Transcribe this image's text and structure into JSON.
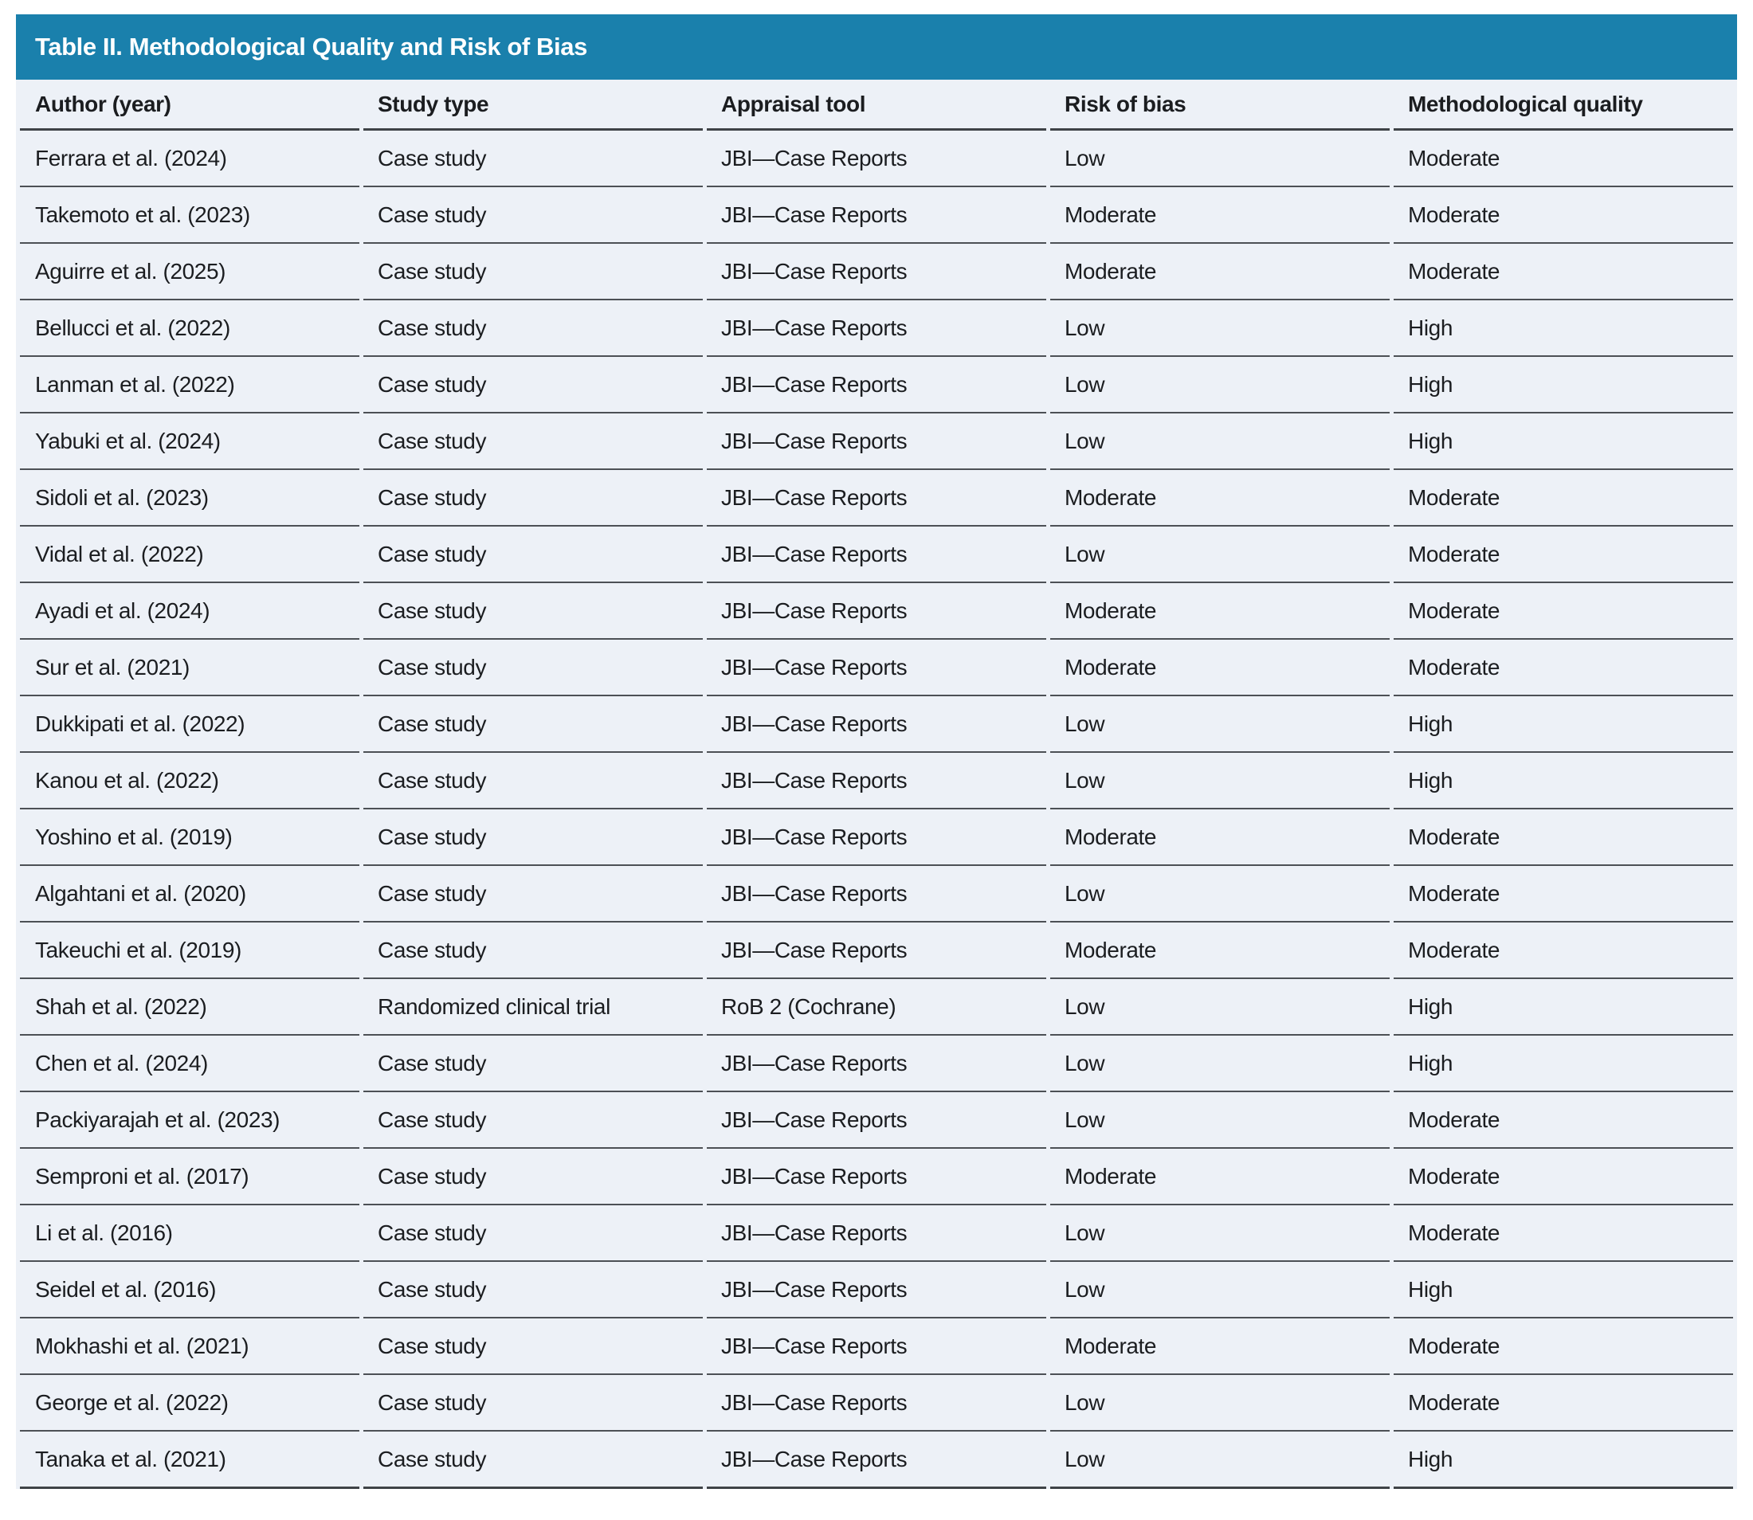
{
  "title": "Table II. Methodological Quality and Risk of Bias",
  "colors": {
    "header_bg": "#1a80ac",
    "title_text": "#ffffff",
    "row_bg": "#edf1f7",
    "text": "#1b1d20",
    "line": "#4c5055",
    "strong_line": "#3f4347"
  },
  "table": {
    "columns": [
      "Author (year)",
      "Study type",
      "Appraisal tool",
      "Risk of bias",
      "Methodological quality"
    ],
    "rows": [
      [
        "Ferrara et al. (2024)",
        "Case study",
        "JBI—Case Reports",
        "Low",
        "Moderate"
      ],
      [
        "Takemoto et al. (2023)",
        "Case study",
        "JBI—Case Reports",
        "Moderate",
        "Moderate"
      ],
      [
        "Aguirre et al. (2025)",
        "Case study",
        "JBI—Case Reports",
        "Moderate",
        "Moderate"
      ],
      [
        "Bellucci et al. (2022)",
        "Case study",
        "JBI—Case Reports",
        "Low",
        "High"
      ],
      [
        "Lanman et al. (2022)",
        "Case study",
        "JBI—Case Reports",
        "Low",
        "High"
      ],
      [
        "Yabuki et al. (2024)",
        "Case study",
        "JBI—Case Reports",
        "Low",
        "High"
      ],
      [
        "Sidoli et al. (2023)",
        "Case study",
        "JBI—Case Reports",
        "Moderate",
        "Moderate"
      ],
      [
        "Vidal et al. (2022)",
        "Case study",
        "JBI—Case Reports",
        "Low",
        "Moderate"
      ],
      [
        "Ayadi et al. (2024)",
        "Case study",
        "JBI—Case Reports",
        "Moderate",
        "Moderate"
      ],
      [
        "Sur et al. (2021)",
        "Case study",
        "JBI—Case Reports",
        "Moderate",
        "Moderate"
      ],
      [
        "Dukkipati et al. (2022)",
        "Case study",
        "JBI—Case Reports",
        "Low",
        "High"
      ],
      [
        "Kanou et al. (2022)",
        "Case study",
        "JBI—Case Reports",
        "Low",
        "High"
      ],
      [
        "Yoshino et al. (2019)",
        "Case study",
        "JBI—Case Reports",
        "Moderate",
        "Moderate"
      ],
      [
        "Algahtani et al. (2020)",
        "Case study",
        "JBI—Case Reports",
        "Low",
        "Moderate"
      ],
      [
        "Takeuchi et al. (2019)",
        "Case study",
        "JBI—Case Reports",
        "Moderate",
        "Moderate"
      ],
      [
        "Shah et al. (2022)",
        "Randomized clinical trial",
        "RoB 2 (Cochrane)",
        "Low",
        "High"
      ],
      [
        "Chen et al. (2024)",
        "Case study",
        "JBI—Case Reports",
        "Low",
        "High"
      ],
      [
        "Packiyarajah et al. (2023)",
        "Case study",
        "JBI—Case Reports",
        "Low",
        "Moderate"
      ],
      [
        "Semproni et al. (2017)",
        "Case study",
        "JBI—Case Reports",
        "Moderate",
        "Moderate"
      ],
      [
        "Li et al. (2016)",
        "Case study",
        "JBI—Case Reports",
        "Low",
        "Moderate"
      ],
      [
        "Seidel et al. (2016)",
        "Case study",
        "JBI—Case Reports",
        "Low",
        "High"
      ],
      [
        "Mokhashi et al. (2021)",
        "Case study",
        "JBI—Case Reports",
        "Moderate",
        "Moderate"
      ],
      [
        "George et al. (2022)",
        "Case study",
        "JBI—Case Reports",
        "Low",
        "Moderate"
      ],
      [
        "Tanaka et al. (2021)",
        "Case study",
        "JBI—Case Reports",
        "Low",
        "High"
      ]
    ],
    "cell_names": [
      "author-year-cell",
      "study-type-cell",
      "appraisal-tool-cell",
      "risk-of-bias-cell",
      "methodological-quality-cell"
    ]
  }
}
